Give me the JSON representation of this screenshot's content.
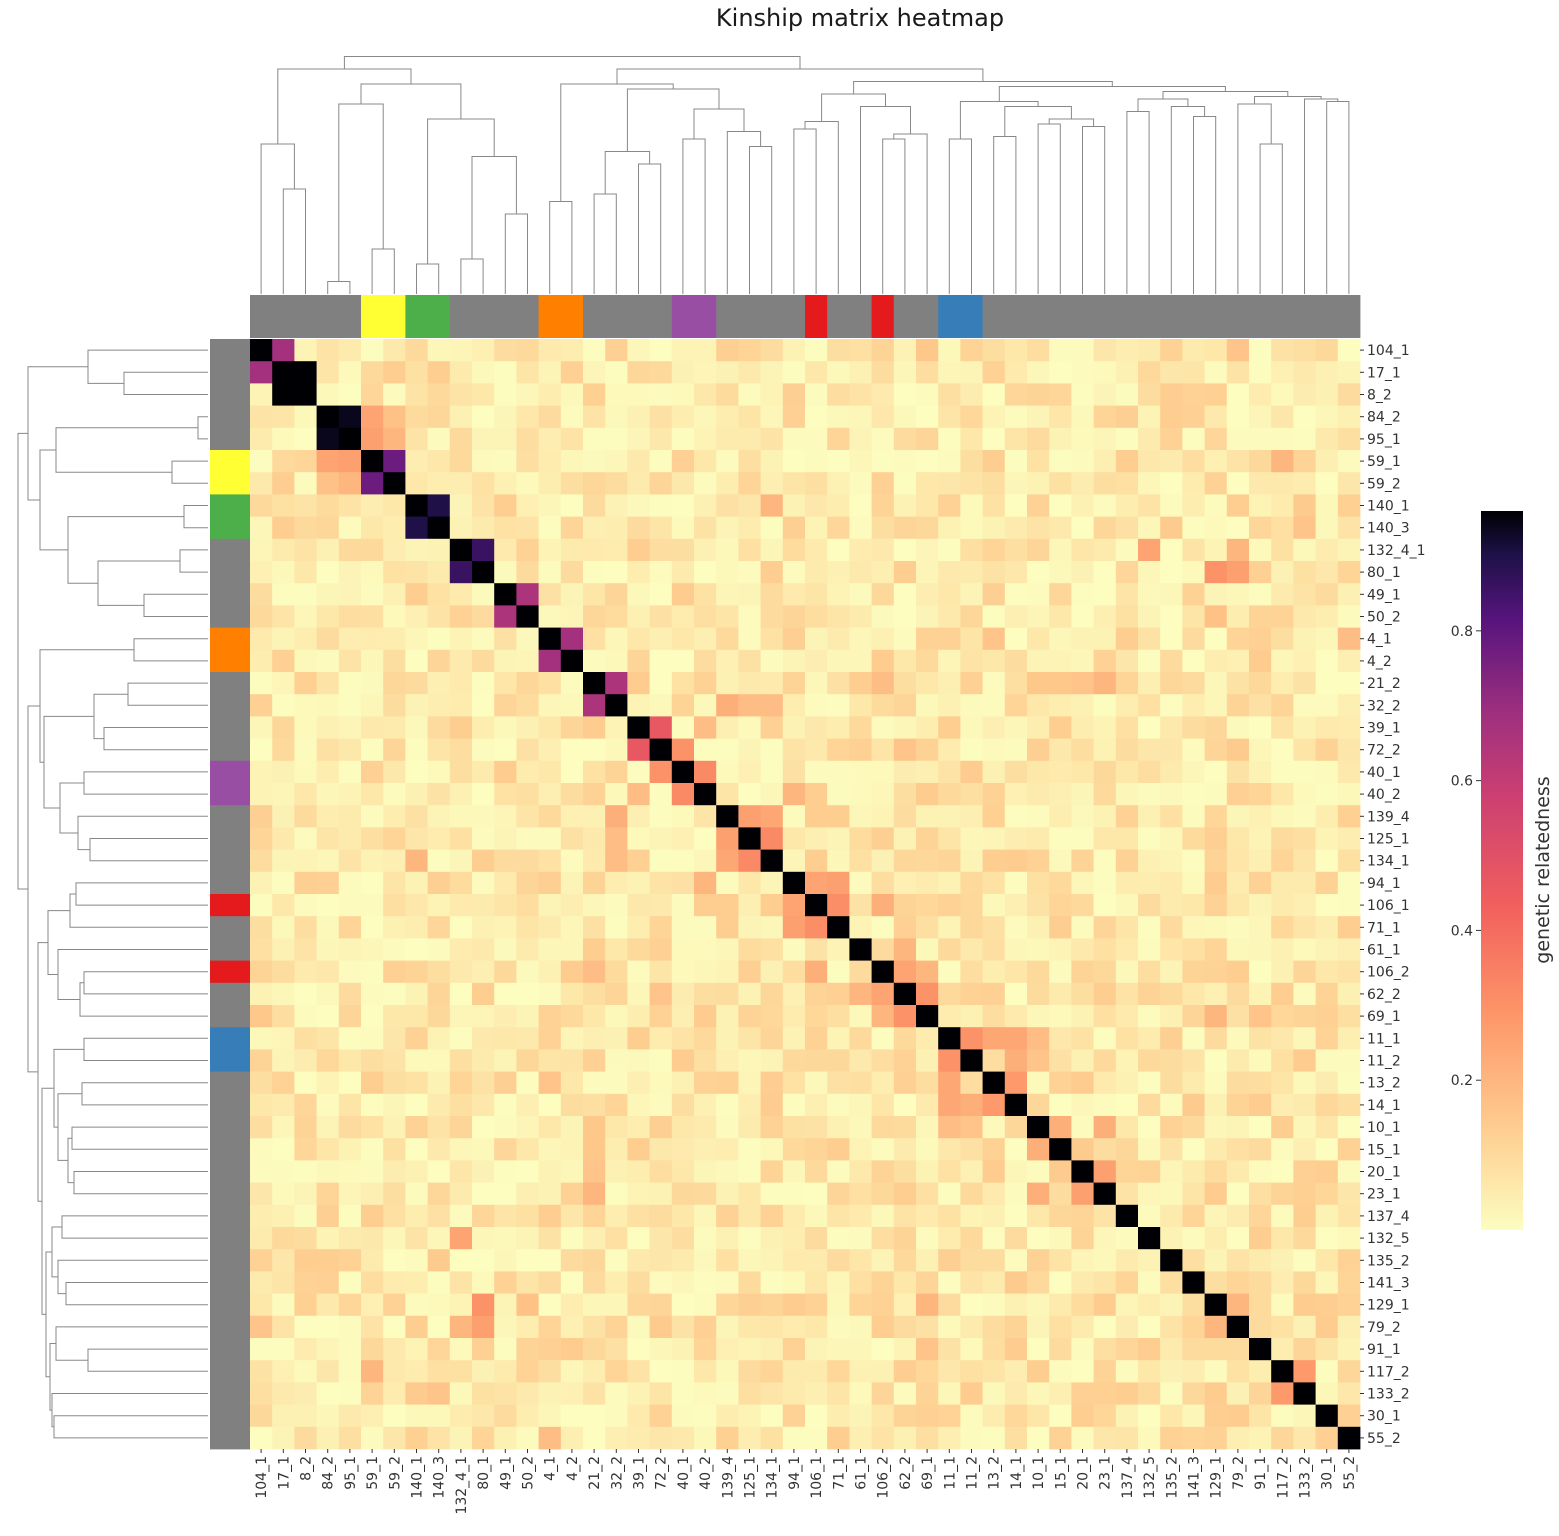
{
  "chart_data": {
    "type": "heatmap",
    "title": "Kinship matrix heatmap",
    "colorbar": {
      "label": "genetic relatedness",
      "ticks": [
        "0.2",
        "0.4",
        "0.6",
        "0.8"
      ],
      "tick_values": [
        0.2,
        0.4,
        0.6,
        0.8
      ],
      "range": [
        0.0,
        0.96
      ],
      "colormap": "magma_r"
    },
    "labels": [
      "104_1",
      "17_1",
      "8_2",
      "84_2",
      "95_1",
      "59_1",
      "59_2",
      "140_1",
      "140_3",
      "132_4_1",
      "80_1",
      "49_1",
      "50_2",
      "4_1",
      "4_2",
      "21_2",
      "32_2",
      "39_1",
      "72_2",
      "40_1",
      "40_2",
      "139_4",
      "125_1",
      "134_1",
      "94_1",
      "106_1",
      "71_1",
      "61_1",
      "106_2",
      "62_2",
      "69_1",
      "11_1",
      "11_2",
      "13_2",
      "14_1",
      "10_1",
      "15_1",
      "20_1",
      "23_1",
      "137_4",
      "132_5",
      "135_2",
      "141_3",
      "129_1",
      "79_2",
      "91_1",
      "117_2",
      "133_2",
      "30_1",
      "55_2"
    ],
    "group_colors": [
      "#808080",
      "#808080",
      "#808080",
      "#808080",
      "#808080",
      "#ffff33",
      "#ffff33",
      "#4daf4a",
      "#4daf4a",
      "#808080",
      "#808080",
      "#808080",
      "#808080",
      "#ff7f00",
      "#ff7f00",
      "#808080",
      "#808080",
      "#808080",
      "#808080",
      "#984ea3",
      "#984ea3",
      "#808080",
      "#808080",
      "#808080",
      "#808080",
      "#e41a1c",
      "#808080",
      "#808080",
      "#e41a1c",
      "#808080",
      "#808080",
      "#377eb8",
      "#377eb8",
      "#808080",
      "#808080",
      "#808080",
      "#808080",
      "#808080",
      "#808080",
      "#808080",
      "#808080",
      "#808080",
      "#808080",
      "#808080",
      "#808080",
      "#808080",
      "#808080",
      "#808080",
      "#808080",
      "#808080"
    ],
    "diagonal_value": 0.96,
    "background_range": [
      0.0,
      0.14
    ],
    "pairs": [
      [
        "104_1",
        "17_1",
        0.68
      ],
      [
        "17_1",
        "8_2",
        0.96
      ],
      [
        "104_1",
        "79_2",
        0.16
      ],
      [
        "104_1",
        "69_1",
        0.15
      ],
      [
        "84_2",
        "95_1",
        0.94
      ],
      [
        "84_2",
        "59_1",
        0.25
      ],
      [
        "84_2",
        "59_2",
        0.17
      ],
      [
        "95_1",
        "59_1",
        0.26
      ],
      [
        "95_1",
        "59_2",
        0.2
      ],
      [
        "59_1",
        "59_2",
        0.78
      ],
      [
        "59_1",
        "117_2",
        0.2
      ],
      [
        "140_1",
        "140_3",
        0.9
      ],
      [
        "140_1",
        "134_1",
        0.2
      ],
      [
        "140_1",
        "133_2",
        0.14
      ],
      [
        "140_3",
        "133_2",
        0.16
      ],
      [
        "140_3",
        "135_2",
        0.14
      ],
      [
        "132_4_1",
        "80_1",
        0.86
      ],
      [
        "132_4_1",
        "132_5",
        0.25
      ],
      [
        "132_4_1",
        "79_2",
        0.2
      ],
      [
        "80_1",
        "129_1",
        0.3
      ],
      [
        "80_1",
        "79_2",
        0.26
      ],
      [
        "49_1",
        "50_2",
        0.66
      ],
      [
        "50_2",
        "129_1",
        0.17
      ],
      [
        "4_1",
        "4_2",
        0.68
      ],
      [
        "4_1",
        "55_2",
        0.18
      ],
      [
        "4_1",
        "13_2",
        0.16
      ],
      [
        "21_2",
        "32_2",
        0.66
      ],
      [
        "21_2",
        "106_2",
        0.18
      ],
      [
        "21_2",
        "23_1",
        0.2
      ],
      [
        "21_2",
        "10_1",
        0.15
      ],
      [
        "21_2",
        "15_1",
        0.15
      ],
      [
        "21_2",
        "20_1",
        0.16
      ],
      [
        "32_2",
        "139_4",
        0.22
      ],
      [
        "32_2",
        "125_1",
        0.18
      ],
      [
        "32_2",
        "134_1",
        0.18
      ],
      [
        "39_1",
        "72_2",
        0.47
      ],
      [
        "39_1",
        "40_2",
        0.18
      ],
      [
        "72_2",
        "40_1",
        0.3
      ],
      [
        "72_2",
        "62_2",
        0.16
      ],
      [
        "40_1",
        "40_2",
        0.32
      ],
      [
        "40_2",
        "94_1",
        0.2
      ],
      [
        "139_4",
        "125_1",
        0.26
      ],
      [
        "139_4",
        "134_1",
        0.24
      ],
      [
        "125_1",
        "134_1",
        0.32
      ],
      [
        "94_1",
        "106_1",
        0.25
      ],
      [
        "94_1",
        "71_1",
        0.26
      ],
      [
        "106_1",
        "71_1",
        0.31
      ],
      [
        "106_1",
        "106_2",
        0.22
      ],
      [
        "61_1",
        "62_2",
        0.2
      ],
      [
        "106_2",
        "62_2",
        0.25
      ],
      [
        "106_2",
        "69_1",
        0.2
      ],
      [
        "62_2",
        "69_1",
        0.3
      ],
      [
        "69_1",
        "129_1",
        0.2
      ],
      [
        "69_1",
        "91_1",
        0.16
      ],
      [
        "11_1",
        "11_2",
        0.3
      ],
      [
        "11_1",
        "14_1",
        0.24
      ],
      [
        "11_2",
        "14_1",
        0.22
      ],
      [
        "11_1",
        "10_1",
        0.18
      ],
      [
        "11_2",
        "10_1",
        0.16
      ],
      [
        "13_2",
        "14_1",
        0.28
      ],
      [
        "13_2",
        "11_1",
        0.24
      ],
      [
        "10_1",
        "15_1",
        0.22
      ],
      [
        "10_1",
        "23_1",
        0.22
      ],
      [
        "15_1",
        "20_1",
        0.14
      ],
      [
        "20_1",
        "23_1",
        0.26
      ],
      [
        "129_1",
        "79_2",
        0.2
      ],
      [
        "117_2",
        "133_2",
        0.28
      ]
    ]
  }
}
